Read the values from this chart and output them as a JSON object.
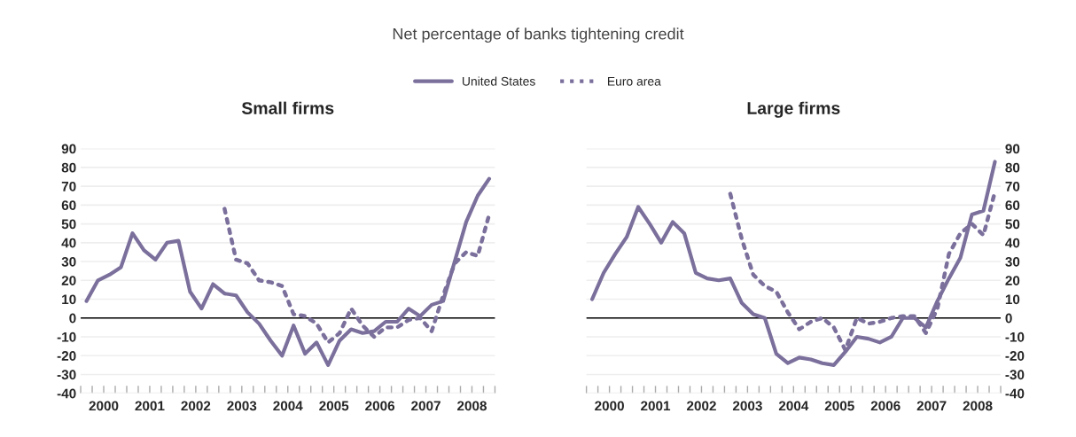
{
  "chart_data": [
    {
      "type": "line",
      "title": "Small firms",
      "annotations": [
        "Net percentage of banks tightening credit"
      ],
      "xlim": [
        2000,
        2009
      ],
      "ylim": [
        -40,
        90
      ],
      "yticks": [
        -40,
        -30,
        -20,
        -10,
        0,
        10,
        20,
        30,
        40,
        50,
        60,
        70,
        80,
        90
      ],
      "xticks": [
        {
          "value": 2000,
          "label": null
        },
        {
          "value": 2000.25,
          "label": null
        },
        {
          "value": 2000.5,
          "label": "2000"
        },
        {
          "value": 2000.75,
          "label": null
        },
        {
          "value": 2001,
          "label": null
        },
        {
          "value": 2001.25,
          "label": null
        },
        {
          "value": 2001.5,
          "label": "2001"
        },
        {
          "value": 2001.75,
          "label": null
        },
        {
          "value": 2002,
          "label": null
        },
        {
          "value": 2002.25,
          "label": null
        },
        {
          "value": 2002.5,
          "label": "2002"
        },
        {
          "value": 2002.75,
          "label": null
        },
        {
          "value": 2003,
          "label": null
        },
        {
          "value": 2003.25,
          "label": null
        },
        {
          "value": 2003.5,
          "label": "2003"
        },
        {
          "value": 2003.75,
          "label": null
        },
        {
          "value": 2004,
          "label": null
        },
        {
          "value": 2004.25,
          "label": null
        },
        {
          "value": 2004.5,
          "label": "2004"
        },
        {
          "value": 2004.75,
          "label": null
        },
        {
          "value": 2005,
          "label": null
        },
        {
          "value": 2005.25,
          "label": null
        },
        {
          "value": 2005.5,
          "label": "2005"
        },
        {
          "value": 2005.75,
          "label": null
        },
        {
          "value": 2006,
          "label": null
        },
        {
          "value": 2006.25,
          "label": null
        },
        {
          "value": 2006.5,
          "label": "2006"
        },
        {
          "value": 2006.75,
          "label": null
        },
        {
          "value": 2007,
          "label": null
        },
        {
          "value": 2007.25,
          "label": null
        },
        {
          "value": 2007.5,
          "label": "2007"
        },
        {
          "value": 2007.75,
          "label": null
        },
        {
          "value": 2008,
          "label": null
        },
        {
          "value": 2008.25,
          "label": null
        },
        {
          "value": 2008.5,
          "label": "2008"
        },
        {
          "value": 2008.75,
          "label": null
        },
        {
          "value": 2009,
          "label": null
        }
      ],
      "grid": "y",
      "legend": "top",
      "marker": "none",
      "ref_lines": [
        {
          "axis": "y",
          "value": 0,
          "color": "#000000"
        }
      ],
      "series": [
        {
          "name": "United States",
          "color": "#7b6f9c",
          "line_style": "solid",
          "x": [
            2000.125,
            2000.375,
            2000.625,
            2000.875,
            2001.125,
            2001.375,
            2001.625,
            2001.875,
            2002.125,
            2002.375,
            2002.625,
            2002.875,
            2003.125,
            2003.375,
            2003.625,
            2003.875,
            2004.125,
            2004.375,
            2004.625,
            2004.875,
            2005.125,
            2005.375,
            2005.625,
            2005.875,
            2006.125,
            2006.375,
            2006.625,
            2006.875,
            2007.125,
            2007.375,
            2007.625,
            2007.875,
            2008.125,
            2008.375,
            2008.625,
            2008.875
          ],
          "values": [
            9,
            20,
            23,
            27,
            45,
            36,
            31,
            40,
            41,
            14,
            5,
            18,
            13,
            12,
            3,
            -3,
            -12,
            -20,
            -4,
            -19,
            -13,
            -25,
            -12,
            -6,
            -8,
            -7,
            -2,
            -2,
            5,
            1,
            7,
            9,
            30,
            51,
            65,
            74
          ]
        },
        {
          "name": "Euro area",
          "color": "#7b6f9c",
          "line_style": "dotted",
          "x": [
            2003.125,
            2003.375,
            2003.625,
            2003.875,
            2004.125,
            2004.375,
            2004.625,
            2004.875,
            2005.125,
            2005.375,
            2005.625,
            2005.875,
            2006.125,
            2006.375,
            2006.625,
            2006.875,
            2007.125,
            2007.375,
            2007.625,
            2007.875,
            2008.125,
            2008.375,
            2008.625,
            2008.875
          ],
          "values": [
            58,
            31,
            29,
            20,
            19,
            17,
            2,
            1,
            -3,
            -13,
            -8,
            5,
            -4,
            -10,
            -5,
            -5,
            -1,
            0,
            -7,
            12,
            29,
            35,
            33,
            55
          ]
        }
      ]
    },
    {
      "type": "line",
      "title": "Large firms",
      "xlim": [
        2000,
        2009
      ],
      "ylim": [
        -40,
        90
      ],
      "yticks": [
        -40,
        -30,
        -20,
        -10,
        0,
        10,
        20,
        30,
        40,
        50,
        60,
        70,
        80,
        90
      ],
      "xticks": [
        {
          "value": 2000,
          "label": null
        },
        {
          "value": 2000.25,
          "label": null
        },
        {
          "value": 2000.5,
          "label": "2000"
        },
        {
          "value": 2000.75,
          "label": null
        },
        {
          "value": 2001,
          "label": null
        },
        {
          "value": 2001.25,
          "label": null
        },
        {
          "value": 2001.5,
          "label": "2001"
        },
        {
          "value": 2001.75,
          "label": null
        },
        {
          "value": 2002,
          "label": null
        },
        {
          "value": 2002.25,
          "label": null
        },
        {
          "value": 2002.5,
          "label": "2002"
        },
        {
          "value": 2002.75,
          "label": null
        },
        {
          "value": 2003,
          "label": null
        },
        {
          "value": 2003.25,
          "label": null
        },
        {
          "value": 2003.5,
          "label": "2003"
        },
        {
          "value": 2003.75,
          "label": null
        },
        {
          "value": 2004,
          "label": null
        },
        {
          "value": 2004.25,
          "label": null
        },
        {
          "value": 2004.5,
          "label": "2004"
        },
        {
          "value": 2004.75,
          "label": null
        },
        {
          "value": 2005,
          "label": null
        },
        {
          "value": 2005.25,
          "label": null
        },
        {
          "value": 2005.5,
          "label": "2005"
        },
        {
          "value": 2005.75,
          "label": null
        },
        {
          "value": 2006,
          "label": null
        },
        {
          "value": 2006.25,
          "label": null
        },
        {
          "value": 2006.5,
          "label": "2006"
        },
        {
          "value": 2006.75,
          "label": null
        },
        {
          "value": 2007,
          "label": null
        },
        {
          "value": 2007.25,
          "label": null
        },
        {
          "value": 2007.5,
          "label": "2007"
        },
        {
          "value": 2007.75,
          "label": null
        },
        {
          "value": 2008,
          "label": null
        },
        {
          "value": 2008.25,
          "label": null
        },
        {
          "value": 2008.5,
          "label": "2008"
        },
        {
          "value": 2008.75,
          "label": null
        },
        {
          "value": 2009,
          "label": null
        }
      ],
      "grid": "y",
      "marker": "none",
      "ref_lines": [
        {
          "axis": "y",
          "value": 0,
          "color": "#000000"
        }
      ],
      "series": [
        {
          "color": "#7b6f9c",
          "line_style": "solid",
          "x": [
            2000.125,
            2000.375,
            2000.625,
            2000.875,
            2001.125,
            2001.375,
            2001.625,
            2001.875,
            2002.125,
            2002.375,
            2002.625,
            2002.875,
            2003.125,
            2003.375,
            2003.625,
            2003.875,
            2004.125,
            2004.375,
            2004.625,
            2004.875,
            2005.125,
            2005.375,
            2005.625,
            2005.875,
            2006.125,
            2006.375,
            2006.625,
            2006.875,
            2007.125,
            2007.375,
            2007.625,
            2007.875,
            2008.125,
            2008.375,
            2008.625,
            2008.875
          ],
          "values": [
            10,
            24,
            34,
            43,
            59,
            50,
            40,
            51,
            45,
            24,
            21,
            20,
            21,
            8,
            2,
            0,
            -19,
            -24,
            -21,
            -22,
            -24,
            -25,
            -18,
            -10,
            -11,
            -13,
            -10,
            0,
            0,
            -5,
            9,
            21,
            32,
            55,
            57,
            83
          ]
        },
        {
          "color": "#7b6f9c",
          "line_style": "dotted",
          "x": [
            2003.125,
            2003.375,
            2003.625,
            2003.875,
            2004.125,
            2004.375,
            2004.625,
            2004.875,
            2005.125,
            2005.375,
            2005.625,
            2005.875,
            2006.125,
            2006.375,
            2006.625,
            2006.875,
            2007.125,
            2007.375,
            2007.625,
            2007.875,
            2008.125,
            2008.375,
            2008.625,
            2008.875
          ],
          "values": [
            66,
            42,
            23,
            17,
            14,
            3,
            -6,
            -2,
            0,
            -5,
            -17,
            0,
            -3,
            -2,
            0,
            1,
            1,
            -8,
            5,
            34,
            45,
            50,
            44,
            67
          ]
        }
      ]
    }
  ]
}
